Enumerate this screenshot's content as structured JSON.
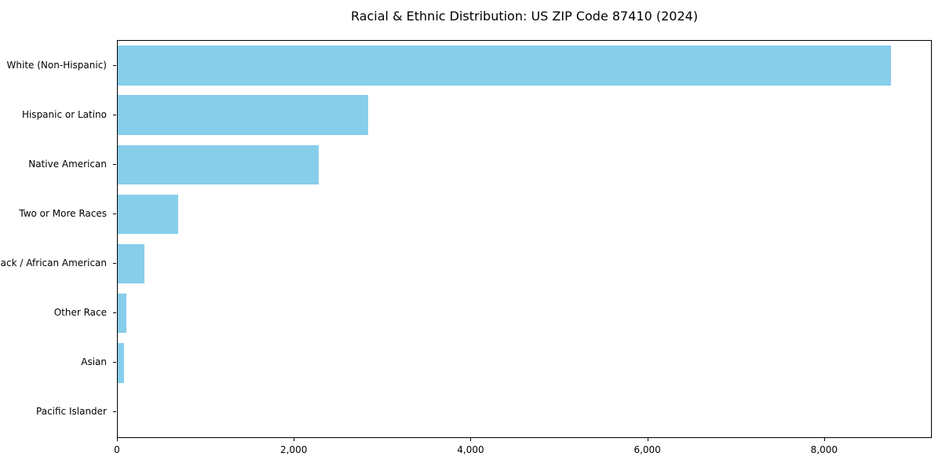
{
  "chart_data": {
    "type": "bar",
    "orientation": "horizontal",
    "title": "Racial & Ethnic Distribution: US ZIP Code 87410 (2024)",
    "categories": [
      "White (Non-Hispanic)",
      "Hispanic or Latino",
      "Native American",
      "Two or More Races",
      "Black / African American",
      "Other Race",
      "Asian",
      "Pacific Islander"
    ],
    "values": [
      8750,
      2830,
      2270,
      680,
      300,
      100,
      70,
      0
    ],
    "xlabel": "",
    "ylabel": "",
    "xlim": [
      0,
      9200
    ],
    "x_ticks": [
      0,
      2000,
      4000,
      6000,
      8000
    ],
    "x_tick_labels": [
      "0",
      "2,000",
      "4,000",
      "6,000",
      "8,000"
    ],
    "bar_color": "#87CEEB",
    "bar_relative_height": 0.8,
    "grid": false,
    "legend": "none",
    "background_color": "#ffffff",
    "spine_color": "#000000"
  }
}
